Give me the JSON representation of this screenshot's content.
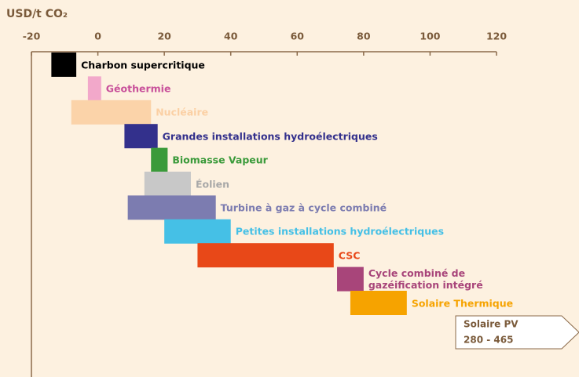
{
  "chart_data": {
    "type": "range-bar",
    "y_axis_label": "USD/t CO₂",
    "categories": [
      "Charbon supercritique",
      "Géothermie",
      "Nucléaire",
      "Grandes installations hydroélectriques",
      "Biomasse Vapeur",
      "Éolien",
      "Turbine à gaz à cycle combiné",
      "Petites installations hydroélectriques",
      "CSC",
      "Cycle combiné de\ngazéification intégré",
      "Solaire Thermique"
    ],
    "low": [
      -14,
      -3,
      -8,
      8,
      16,
      14,
      9,
      20,
      30,
      72,
      76
    ],
    "high": [
      -6.5,
      1,
      16,
      18,
      21,
      28,
      35.5,
      40,
      71,
      80,
      93
    ],
    "colors": [
      "#000000",
      "#f2a8ca",
      "#fbd3a9",
      "#33308c",
      "#3a9a3a",
      "#c8c8c8",
      "#7c7cb0",
      "#45c0e6",
      "#e84818",
      "#a8457a",
      "#f6a300"
    ],
    "label_colors": [
      "#000000",
      "#c8509a",
      "#fbd0a4",
      "#33308c",
      "#3a9a3a",
      "#a8a8a8",
      "#7c7cb0",
      "#45c0e6",
      "#e84818",
      "#a8457a",
      "#f6a300"
    ],
    "xlim": [
      -20,
      120
    ],
    "xticks": [
      -20,
      0,
      20,
      40,
      60,
      80,
      100,
      120
    ],
    "annotation": {
      "title": "Solaire PV",
      "text": "280 - 465"
    }
  }
}
